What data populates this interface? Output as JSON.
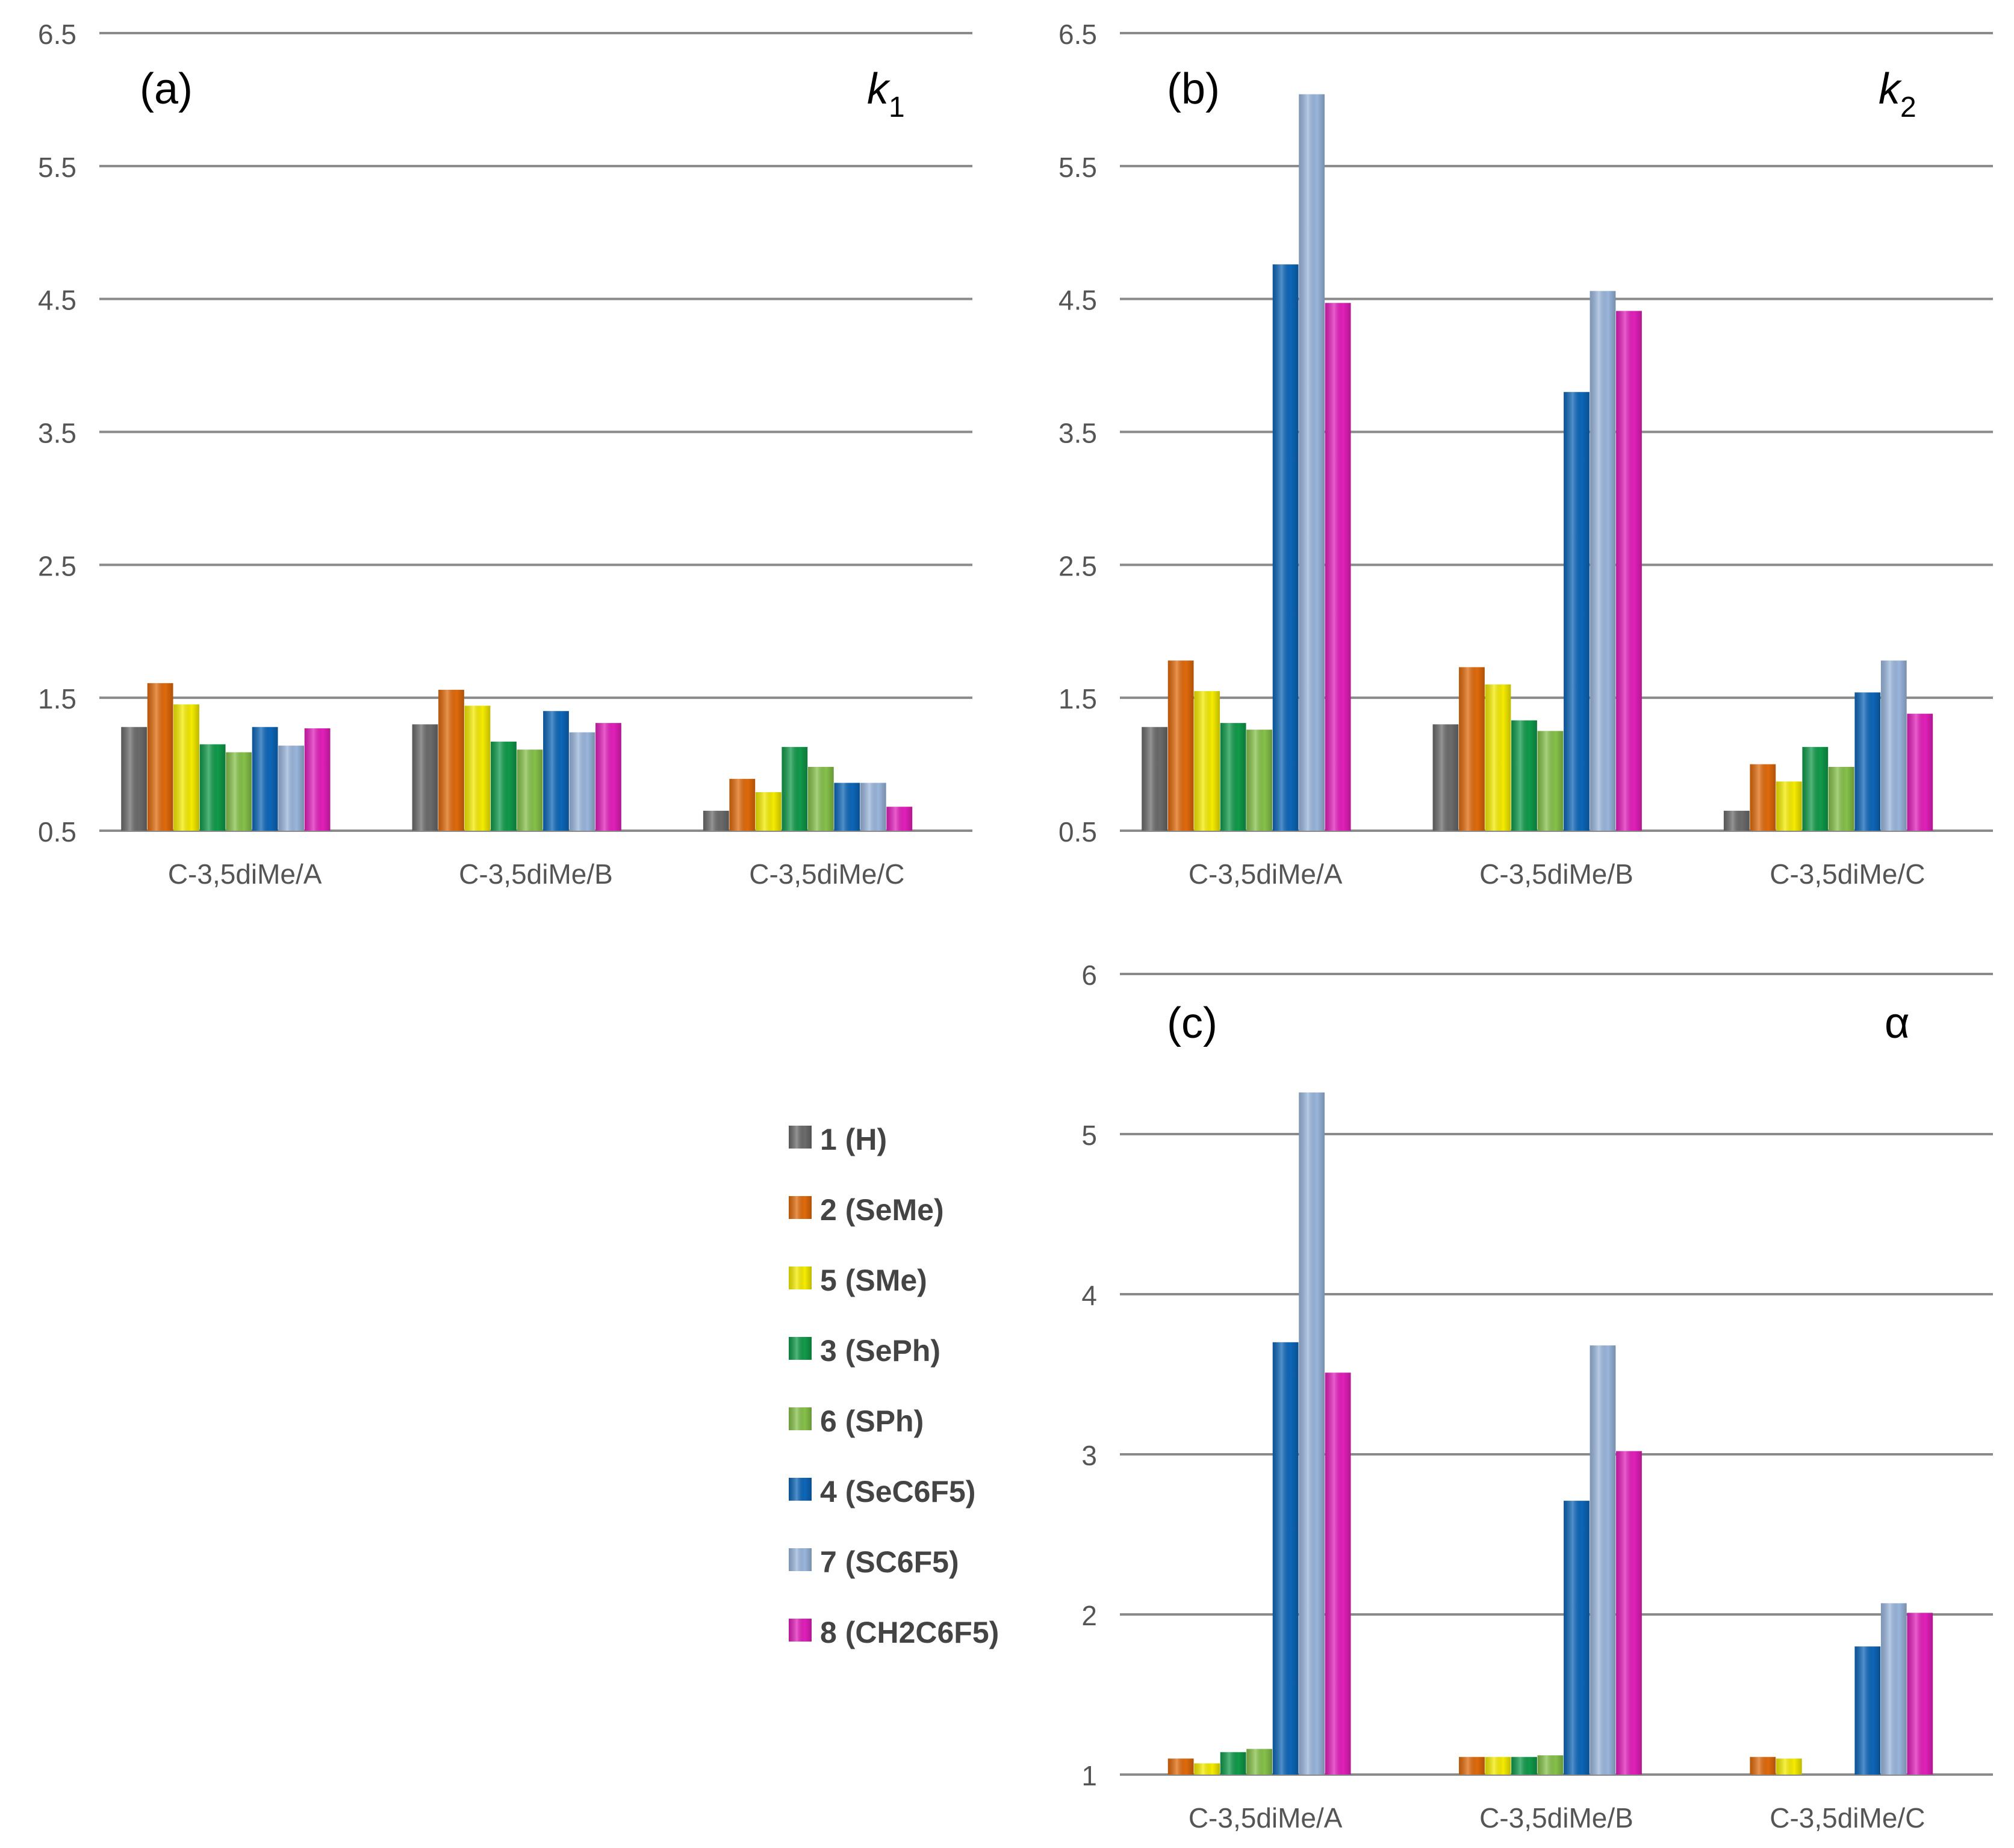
{
  "legend": {
    "placement": "left of panel (c)",
    "entries": [
      {
        "label": "1 (H)",
        "color": "#6b6b6b"
      },
      {
        "label": "2 (SeMe)",
        "color": "#e06a0c"
      },
      {
        "label": "5 (SMe)",
        "color": "#f5ec00"
      },
      {
        "label": "3 (SePh)",
        "color": "#109a4a"
      },
      {
        "label": "6 (SPh)",
        "color": "#86c14a"
      },
      {
        "label": "4 (SeC6F5)",
        "color": "#0d66b8"
      },
      {
        "label": "7 (SC6F5)",
        "color": "#9ab6dc"
      },
      {
        "label": "8 (CH2C6F5)",
        "color": "#e21fba"
      }
    ]
  },
  "chart_data": [
    {
      "type": "bar",
      "panel": "(a)",
      "title": "k1",
      "title_main": "k",
      "title_sub": "1",
      "categories": [
        "C-3,5diMe/A",
        "C-3,5diMe/B",
        "C-3,5diMe/C"
      ],
      "ylim": [
        0.5,
        6.5
      ],
      "yticks": [
        "6.5",
        "5.5",
        "4.5",
        "3.5",
        "2.5",
        "1.5",
        "0.5"
      ],
      "grid": true,
      "series": [
        {
          "name": "1 (H)",
          "values": [
            1.28,
            1.3,
            0.65
          ]
        },
        {
          "name": "2 (SeMe)",
          "values": [
            1.61,
            1.56,
            0.89
          ]
        },
        {
          "name": "5 (SMe)",
          "values": [
            1.45,
            1.44,
            0.79
          ]
        },
        {
          "name": "3 (SePh)",
          "values": [
            1.15,
            1.17,
            1.13
          ]
        },
        {
          "name": "6 (SPh)",
          "values": [
            1.09,
            1.11,
            0.98
          ]
        },
        {
          "name": "4 (SeC6F5)",
          "values": [
            1.28,
            1.4,
            0.86
          ]
        },
        {
          "name": "7 (SC6F5)",
          "values": [
            1.14,
            1.24,
            0.86
          ]
        },
        {
          "name": "8 (CH2C6F5)",
          "values": [
            1.27,
            1.31,
            0.68
          ]
        }
      ]
    },
    {
      "type": "bar",
      "panel": "(b)",
      "title": "k2",
      "title_main": "k",
      "title_sub": "2",
      "categories": [
        "C-3,5diMe/A",
        "C-3,5diMe/B",
        "C-3,5diMe/C"
      ],
      "ylim": [
        0.5,
        6.5
      ],
      "yticks": [
        "6.5",
        "5.5",
        "4.5",
        "3.5",
        "2.5",
        "1.5",
        "0.5"
      ],
      "grid": true,
      "series": [
        {
          "name": "1 (H)",
          "values": [
            1.28,
            1.3,
            0.65
          ]
        },
        {
          "name": "2 (SeMe)",
          "values": [
            1.78,
            1.73,
            1.0
          ]
        },
        {
          "name": "5 (SMe)",
          "values": [
            1.55,
            1.6,
            0.87
          ]
        },
        {
          "name": "3 (SePh)",
          "values": [
            1.31,
            1.33,
            1.13
          ]
        },
        {
          "name": "6 (SPh)",
          "values": [
            1.26,
            1.25,
            0.98
          ]
        },
        {
          "name": "4 (SeC6F5)",
          "values": [
            4.76,
            3.8,
            1.54
          ]
        },
        {
          "name": "7 (SC6F5)",
          "values": [
            6.04,
            4.56,
            1.78
          ]
        },
        {
          "name": "8 (CH2C6F5)",
          "values": [
            4.47,
            4.41,
            1.38
          ]
        }
      ]
    },
    {
      "type": "bar",
      "panel": "(c)",
      "title": "α",
      "categories": [
        "C-3,5diMe/A",
        "C-3,5diMe/B",
        "C-3,5diMe/C"
      ],
      "ylim": [
        1,
        6
      ],
      "yticks": [
        "6",
        "5",
        "4",
        "3",
        "2",
        "1"
      ],
      "grid": true,
      "series": [
        {
          "name": "1 (H)",
          "values": [
            1.0,
            1.0,
            1.0
          ]
        },
        {
          "name": "2 (SeMe)",
          "values": [
            1.1,
            1.11,
            1.11
          ]
        },
        {
          "name": "5 (SMe)",
          "values": [
            1.07,
            1.11,
            1.1
          ]
        },
        {
          "name": "3 (SePh)",
          "values": [
            1.14,
            1.11,
            1.0
          ]
        },
        {
          "name": "6 (SPh)",
          "values": [
            1.16,
            1.12,
            1.0
          ]
        },
        {
          "name": "4 (SeC6F5)",
          "values": [
            3.7,
            2.71,
            1.8
          ]
        },
        {
          "name": "7 (SC6F5)",
          "values": [
            5.26,
            3.68,
            2.07
          ]
        },
        {
          "name": "8 (CH2C6F5)",
          "values": [
            3.51,
            3.02,
            2.01
          ]
        }
      ]
    }
  ]
}
